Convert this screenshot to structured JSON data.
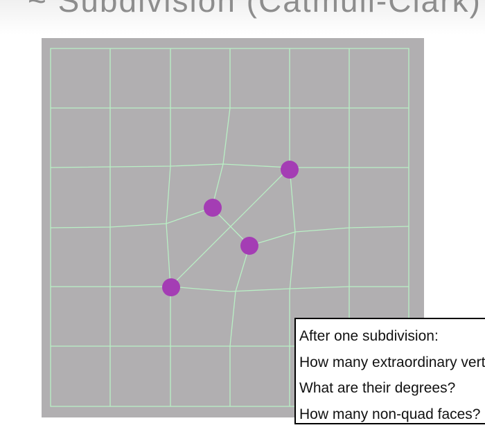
{
  "slide": {
    "partial_title": "~ Subdivision (Catmull-Clark)"
  },
  "diagram": {
    "mesh_line_color": "#b9f0c5",
    "panel_color": "#b1afb1",
    "vertex_color": "#a43db4",
    "extraordinary_vertices": [
      "vertex-a",
      "vertex-b",
      "vertex-c",
      "vertex-d"
    ]
  },
  "question_box": {
    "lines": [
      "After one subdivision:",
      "How many extraordinary vertices?",
      "What are their degrees?",
      "How many non-quad faces?"
    ]
  }
}
